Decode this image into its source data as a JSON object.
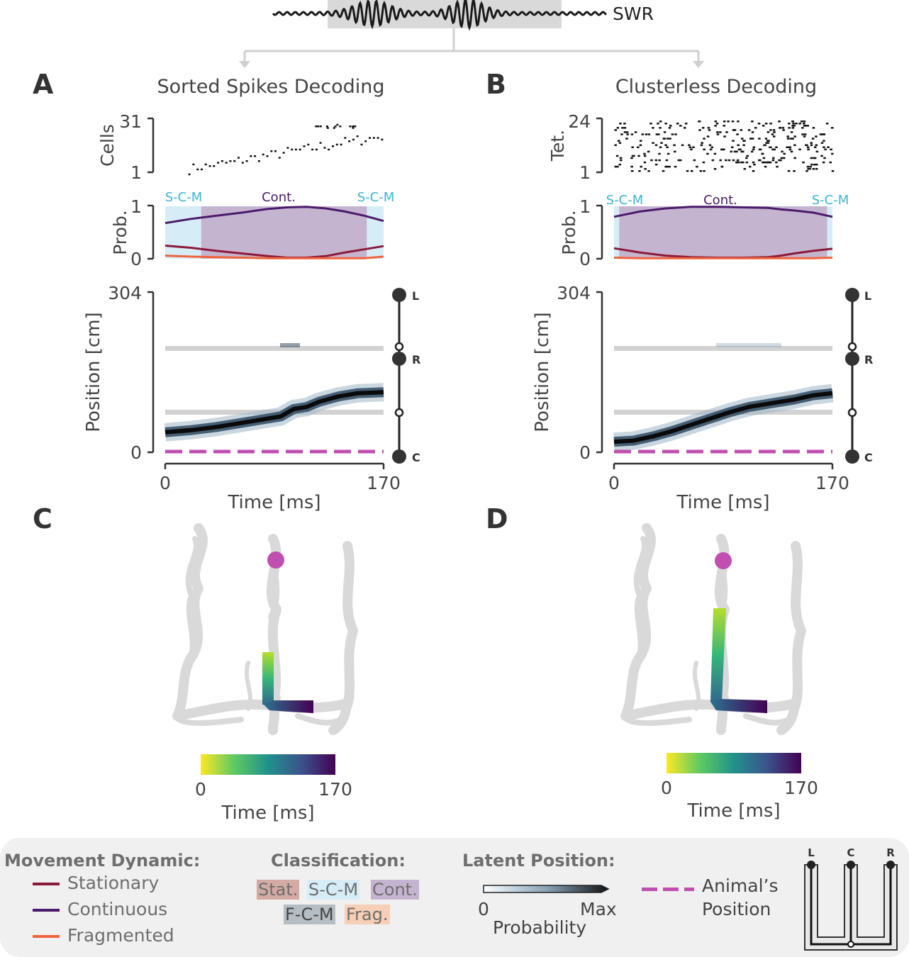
{
  "swr": {
    "label": "SWR"
  },
  "panels": {
    "A": {
      "letter": "A",
      "title": "Sorted Spikes Decoding",
      "raster_ylabel": "Cells",
      "raster_ymax": "31",
      "raster_ymin": "1"
    },
    "B": {
      "letter": "B",
      "title": "Clusterless Decoding",
      "raster_ylabel": "Tet.",
      "raster_ymax": "24",
      "raster_ymin": "1"
    },
    "C": {
      "letter": "C"
    },
    "D": {
      "letter": "D"
    }
  },
  "prob": {
    "ylabel": "Prob.",
    "ymax": "1",
    "ymin": "0",
    "label_left": "S-C-M",
    "label_mid": "Cont.",
    "label_right": "S-C-M"
  },
  "position": {
    "ylabel": "Position [cm]",
    "ymax": "304",
    "ymin": "0",
    "xlabel": "Time [ms]",
    "xmin": "0",
    "xmax": "170"
  },
  "track_nodes": {
    "L": "L",
    "R": "R",
    "C": "C"
  },
  "colorbar": {
    "xmin": "0",
    "xmax": "170",
    "label": "Time [ms]"
  },
  "legend": {
    "movement_title": "Movement Dynamic:",
    "stationary": "Stationary",
    "continuous": "Continuous",
    "fragmented": "Fragmented",
    "classification_title": "Classification:",
    "cls_stat": "Stat.",
    "cls_scm": "S-C-M",
    "cls_cont": "Cont.",
    "cls_fcm": "F-C-M",
    "cls_frag": "Frag.",
    "latent_title": "Latent Position:",
    "latent_min": "0",
    "latent_max": "Max",
    "latent_label": "Probability",
    "animal_line1": "Animal’s",
    "animal_line2": "Position",
    "track_L": "L",
    "track_C": "C",
    "track_R": "R"
  },
  "colors": {
    "stationary": "#8b1a3a",
    "continuous": "#4b1a6b",
    "fragmented": "#f0643c",
    "scm_fill": "#d6edf7",
    "cont_fill": "#c5b4d0",
    "animal": "#c04fb0",
    "label_cyan": "#3cb4d2"
  },
  "chart_data": [
    {
      "panel": "A",
      "type": "line",
      "title": "Sorted Spikes Decoding",
      "xlabel": "Time [ms]",
      "xlim": [
        0,
        170
      ],
      "raster": {
        "ylabel": "Cells",
        "ylim": [
          1,
          31
        ]
      },
      "probability": {
        "ylabel": "Prob.",
        "ylim": [
          0,
          1
        ],
        "x": [
          0,
          20,
          40,
          60,
          80,
          95,
          110,
          125,
          140,
          155,
          170
        ],
        "series": [
          {
            "name": "Continuous",
            "values": [
              0.68,
              0.76,
              0.82,
              0.88,
              0.95,
              0.98,
              0.99,
              0.96,
              0.9,
              0.82,
              0.72
            ]
          },
          {
            "name": "Stationary",
            "values": [
              0.25,
              0.21,
              0.15,
              0.1,
              0.05,
              0.02,
              0.02,
              0.05,
              0.12,
              0.18,
              0.24
            ]
          },
          {
            "name": "Fragmented",
            "values": [
              0.06,
              0.04,
              0.03,
              0.02,
              0.01,
              0.01,
              0.01,
              0.01,
              0.01,
              0.01,
              0.04
            ]
          }
        ],
        "classification": [
          {
            "label": "S-C-M",
            "start": 0,
            "end": 28
          },
          {
            "label": "Cont.",
            "start": 28,
            "end": 157
          },
          {
            "label": "S-C-M",
            "start": 157,
            "end": 170
          }
        ]
      },
      "decoded_position": {
        "ylabel": "Position [cm]",
        "ylim": [
          0,
          304
        ],
        "x": [
          0,
          20,
          40,
          60,
          80,
          90,
          100,
          110,
          120,
          135,
          150,
          170
        ],
        "y": [
          38,
          42,
          48,
          56,
          64,
          68,
          82,
          86,
          96,
          106,
          112,
          114
        ],
        "animal_position": 0,
        "reference_lines": [
          195,
          75
        ]
      }
    },
    {
      "panel": "B",
      "type": "line",
      "title": "Clusterless Decoding",
      "xlabel": "Time [ms]",
      "xlim": [
        0,
        170
      ],
      "raster": {
        "ylabel": "Tet.",
        "ylim": [
          1,
          24
        ]
      },
      "probability": {
        "ylabel": "Prob.",
        "ylim": [
          0,
          1
        ],
        "x": [
          0,
          20,
          40,
          60,
          80,
          100,
          120,
          130,
          140,
          155,
          170
        ],
        "series": [
          {
            "name": "Continuous",
            "values": [
              0.8,
              0.9,
              0.96,
              0.99,
              0.99,
              0.98,
              0.97,
              0.94,
              0.92,
              0.88,
              0.8
            ]
          },
          {
            "name": "Stationary",
            "values": [
              0.2,
              0.12,
              0.06,
              0.03,
              0.02,
              0.02,
              0.03,
              0.06,
              0.1,
              0.15,
              0.19
            ]
          },
          {
            "name": "Fragmented",
            "values": [
              0.02,
              0.01,
              0.01,
              0.01,
              0.01,
              0.01,
              0.01,
              0.01,
              0.01,
              0.01,
              0.02
            ]
          }
        ],
        "classification": [
          {
            "label": "S-C-M",
            "start": 0,
            "end": 4
          },
          {
            "label": "Cont.",
            "start": 4,
            "end": 166
          },
          {
            "label": "S-C-M",
            "start": 166,
            "end": 170
          }
        ]
      },
      "decoded_position": {
        "ylabel": "Position [cm]",
        "ylim": [
          0,
          304
        ],
        "x": [
          0,
          15,
          30,
          45,
          60,
          75,
          90,
          105,
          120,
          140,
          155,
          170
        ],
        "y": [
          20,
          22,
          30,
          40,
          52,
          64,
          76,
          86,
          92,
          100,
          108,
          112
        ],
        "animal_position": 0,
        "reference_lines": [
          195,
          75
        ]
      }
    },
    {
      "panel": "C",
      "type": "scatter",
      "xlabel": "Time [ms]",
      "colorbar_range": [
        0,
        170
      ],
      "description_values": {
        "time_start": 0,
        "time_end": 170
      }
    },
    {
      "panel": "D",
      "type": "scatter",
      "xlabel": "Time [ms]",
      "colorbar_range": [
        0,
        170
      ],
      "description_values": {
        "time_start": 0,
        "time_end": 170
      }
    }
  ]
}
